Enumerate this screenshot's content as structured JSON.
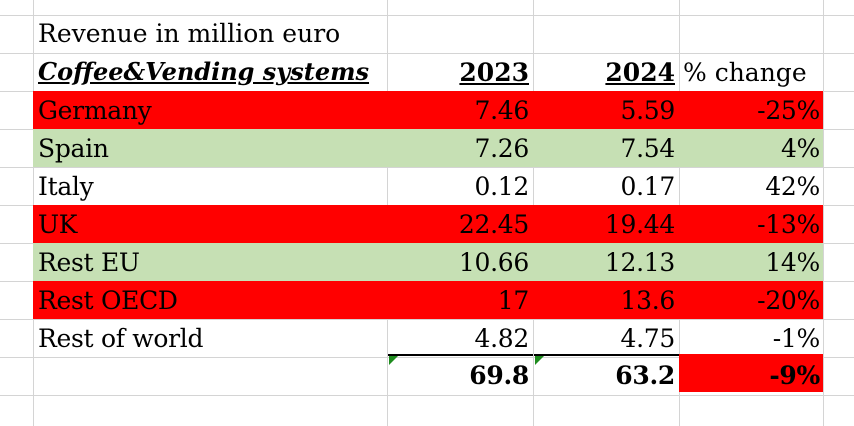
{
  "sheet": {
    "title": "Revenue in million euro",
    "subtitle": "Coffee&Vending systems",
    "headers": {
      "y2023": "2023",
      "y2024": "2024",
      "change": "% change"
    },
    "rows": [
      {
        "label": "Germany",
        "y2023": "7.46",
        "y2024": "5.59",
        "change": "-25%",
        "fill": "red"
      },
      {
        "label": "Spain",
        "y2023": "7.26",
        "y2024": "7.54",
        "change": "4%",
        "fill": "green"
      },
      {
        "label": "Italy",
        "y2023": "0.12",
        "y2024": "0.17",
        "change": "42%",
        "fill": "none"
      },
      {
        "label": "UK",
        "y2023": "22.45",
        "y2024": "19.44",
        "change": "-13%",
        "fill": "red"
      },
      {
        "label": "Rest EU",
        "y2023": "10.66",
        "y2024": "12.13",
        "change": "14%",
        "fill": "green"
      },
      {
        "label": "Rest OECD",
        "y2023": "17",
        "y2024": "13.6",
        "change": "-20%",
        "fill": "red"
      },
      {
        "label": "Rest of world",
        "y2023": "4.82",
        "y2024": "4.75",
        "change": "-1%",
        "fill": "none"
      }
    ],
    "totals": {
      "y2023": "69.8",
      "y2024": "63.2",
      "change": "-9%"
    },
    "colors": {
      "red": "#ff0000",
      "green": "#c6e0b4",
      "gridline": "#d4d4d4",
      "error_marker": "#1e8c1e"
    }
  }
}
